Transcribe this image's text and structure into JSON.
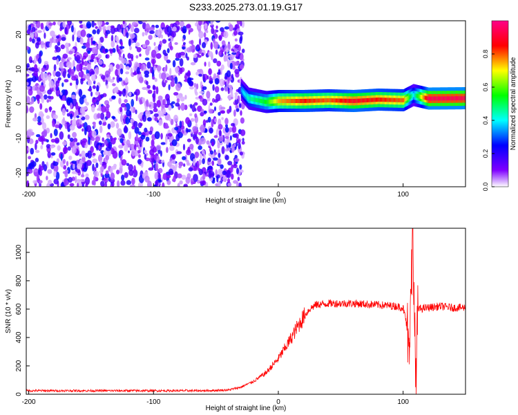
{
  "title": "S233.2025.273.01.19.G17",
  "chart_data": [
    {
      "type": "heatmap",
      "xlabel": "Height of straight line (km)",
      "ylabel": "Frequency (Hz)",
      "xlim": [
        -202,
        150
      ],
      "ylim": [
        -24,
        24
      ],
      "x_ticks": [
        -200,
        -100,
        0,
        100
      ],
      "y_ticks": [
        -20,
        -10,
        0,
        10,
        20
      ],
      "colorbar": {
        "label": "Normalized spectral amplitude",
        "range": [
          0,
          1
        ],
        "ticks": [
          "0.0",
          "0.2",
          "0.4",
          "0.6",
          "0.8"
        ],
        "colors": [
          "#ffffff",
          "#7f00ff",
          "#0000ff",
          "#00ffff",
          "#00ff00",
          "#ffff00",
          "#ff0000",
          "#ff0088"
        ]
      },
      "noise_region": {
        "x_range": [
          -202,
          -28
        ],
        "freq_range": [
          -24,
          24
        ],
        "typical_amplitude": 0.15
      },
      "signal_band": [
        {
          "x": -30,
          "freq": 4.0,
          "amplitude": 0.35
        },
        {
          "x": -24,
          "freq": 1.5,
          "amplitude": 0.45
        },
        {
          "x": -10,
          "freq": 0.5,
          "amplitude": 0.55
        },
        {
          "x": 0,
          "freq": 0.8,
          "amplitude": 0.75
        },
        {
          "x": 20,
          "freq": 0.8,
          "amplitude": 0.85
        },
        {
          "x": 40,
          "freq": 1.0,
          "amplitude": 0.8
        },
        {
          "x": 60,
          "freq": 0.8,
          "amplitude": 0.9
        },
        {
          "x": 80,
          "freq": 1.2,
          "amplitude": 0.85
        },
        {
          "x": 100,
          "freq": 1.0,
          "amplitude": 0.8
        },
        {
          "x": 108,
          "freq": 2.5,
          "amplitude": 0.4
        },
        {
          "x": 120,
          "freq": 1.5,
          "amplitude": 0.95
        },
        {
          "x": 150,
          "freq": 1.6,
          "amplitude": 0.95
        }
      ]
    },
    {
      "type": "line",
      "xlabel": "Height of straight line (km)",
      "ylabel": "SNR (10 * v/v)",
      "xlim": [
        -202,
        150
      ],
      "ylim": [
        0,
        1170
      ],
      "x_ticks": [
        -200,
        -100,
        0,
        100
      ],
      "y_ticks": [
        0,
        200,
        400,
        600,
        800,
        1000
      ],
      "color": "#ff0000",
      "series": [
        {
          "x": [
            -202,
            -180,
            -160,
            -140,
            -120,
            -100,
            -80,
            -60,
            -40,
            -30,
            -20,
            -10,
            0,
            5,
            10,
            15,
            20,
            25,
            30,
            40,
            60,
            80,
            95,
            100,
            105,
            108,
            110,
            112,
            120,
            130,
            140,
            150
          ],
          "y": [
            25,
            25,
            25,
            25,
            25,
            25,
            25,
            25,
            30,
            50,
            90,
            150,
            250,
            320,
            390,
            470,
            540,
            600,
            630,
            640,
            640,
            630,
            620,
            610,
            400,
            1150,
            70,
            600,
            610,
            620,
            610,
            610
          ]
        }
      ]
    }
  ]
}
